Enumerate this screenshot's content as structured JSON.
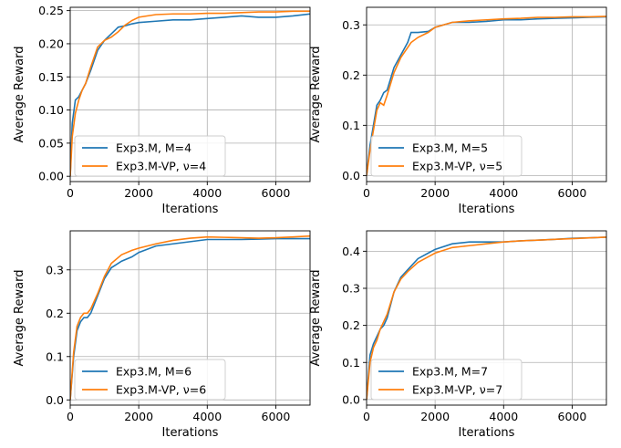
{
  "chart_data": [
    {
      "type": "line",
      "xlabel": "Iterations",
      "ylabel": "Average Reward",
      "xlim": [
        0,
        7000
      ],
      "ylim": [
        -0.008,
        0.255
      ],
      "xticks": [
        0,
        2000,
        4000,
        6000
      ],
      "yticks": [
        0.0,
        0.05,
        0.1,
        0.15,
        0.2,
        0.25
      ],
      "ytick_labels": [
        "0.00",
        "0.05",
        "0.10",
        "0.15",
        "0.20",
        "0.25"
      ],
      "grid": true,
      "legend_position": "lower-left",
      "series": [
        {
          "name": "Exp3.M, M=4",
          "color": "#1f77b4",
          "x": [
            0,
            60,
            150,
            250,
            350,
            450,
            600,
            800,
            1000,
            1200,
            1400,
            1600,
            1800,
            2000,
            2500,
            3000,
            3500,
            4000,
            4500,
            5000,
            5500,
            6000,
            6500,
            7000
          ],
          "y": [
            0.0,
            0.08,
            0.115,
            0.12,
            0.13,
            0.14,
            0.16,
            0.19,
            0.205,
            0.215,
            0.225,
            0.227,
            0.23,
            0.232,
            0.234,
            0.236,
            0.236,
            0.238,
            0.24,
            0.242,
            0.24,
            0.24,
            0.242,
            0.245
          ]
        },
        {
          "name": "Exp3.M-VP, ν=4",
          "color": "#ff7f0e",
          "x": [
            0,
            60,
            150,
            250,
            350,
            450,
            600,
            800,
            1000,
            1200,
            1400,
            1600,
            1800,
            2000,
            2500,
            3000,
            3500,
            4000,
            4500,
            5000,
            5500,
            6000,
            6500,
            7000
          ],
          "y": [
            0.0,
            0.06,
            0.095,
            0.115,
            0.13,
            0.14,
            0.165,
            0.195,
            0.205,
            0.21,
            0.218,
            0.228,
            0.235,
            0.24,
            0.244,
            0.245,
            0.245,
            0.246,
            0.246,
            0.247,
            0.248,
            0.248,
            0.249,
            0.249
          ]
        }
      ]
    },
    {
      "type": "line",
      "xlabel": "Iterations",
      "ylabel": "Average Reward",
      "xlim": [
        0,
        7000
      ],
      "ylim": [
        -0.012,
        0.335
      ],
      "xticks": [
        0,
        2000,
        4000,
        6000
      ],
      "yticks": [
        0.0,
        0.1,
        0.2,
        0.3
      ],
      "ytick_labels": [
        "0.0",
        "0.1",
        "0.2",
        "0.3"
      ],
      "grid": true,
      "legend_position": "lower-left",
      "series": [
        {
          "name": "Exp3.M, M=5",
          "color": "#1f77b4",
          "x": [
            0,
            100,
            200,
            300,
            400,
            500,
            600,
            800,
            1000,
            1200,
            1300,
            1500,
            1800,
            2000,
            2500,
            3000,
            3500,
            4000,
            4500,
            5000,
            5500,
            6000,
            6500,
            7000
          ],
          "y": [
            0.0,
            0.06,
            0.1,
            0.14,
            0.15,
            0.165,
            0.17,
            0.215,
            0.24,
            0.265,
            0.285,
            0.285,
            0.287,
            0.295,
            0.305,
            0.305,
            0.307,
            0.31,
            0.31,
            0.312,
            0.313,
            0.314,
            0.315,
            0.316
          ]
        },
        {
          "name": "Exp3.M-VP, ν=5",
          "color": "#ff7f0e",
          "x": [
            0,
            100,
            200,
            300,
            400,
            500,
            600,
            800,
            1000,
            1200,
            1300,
            1500,
            1800,
            2000,
            2500,
            3000,
            3500,
            4000,
            4500,
            5000,
            5500,
            6000,
            6500,
            7000
          ],
          "y": [
            0.0,
            0.05,
            0.09,
            0.13,
            0.145,
            0.14,
            0.16,
            0.205,
            0.235,
            0.255,
            0.265,
            0.275,
            0.285,
            0.295,
            0.305,
            0.308,
            0.31,
            0.312,
            0.313,
            0.315,
            0.315,
            0.316,
            0.316,
            0.317
          ]
        }
      ]
    },
    {
      "type": "line",
      "xlabel": "Iterations",
      "ylabel": "Average Reward",
      "xlim": [
        0,
        7000
      ],
      "ylim": [
        -0.012,
        0.39
      ],
      "xticks": [
        0,
        2000,
        4000,
        6000
      ],
      "yticks": [
        0.0,
        0.1,
        0.2,
        0.3
      ],
      "ytick_labels": [
        "0.0",
        "0.1",
        "0.2",
        "0.3"
      ],
      "grid": true,
      "legend_position": "lower-left",
      "series": [
        {
          "name": "Exp3.M, M=6",
          "color": "#1f77b4",
          "x": [
            0,
            100,
            200,
            300,
            400,
            500,
            600,
            800,
            1000,
            1200,
            1500,
            1800,
            2000,
            2500,
            3000,
            3500,
            4000,
            4500,
            5000,
            5500,
            6000,
            6500,
            7000
          ],
          "y": [
            0.0,
            0.1,
            0.16,
            0.18,
            0.19,
            0.19,
            0.2,
            0.24,
            0.28,
            0.305,
            0.32,
            0.33,
            0.34,
            0.355,
            0.36,
            0.365,
            0.37,
            0.37,
            0.37,
            0.371,
            0.372,
            0.372,
            0.372
          ]
        },
        {
          "name": "Exp3.M-VP, ν=6",
          "color": "#ff7f0e",
          "x": [
            0,
            100,
            200,
            300,
            400,
            500,
            600,
            800,
            1000,
            1200,
            1500,
            1800,
            2000,
            2500,
            3000,
            3500,
            4000,
            4500,
            5000,
            5500,
            6000,
            6500,
            7000
          ],
          "y": [
            0.0,
            0.11,
            0.17,
            0.19,
            0.2,
            0.2,
            0.21,
            0.245,
            0.285,
            0.315,
            0.335,
            0.345,
            0.35,
            0.36,
            0.368,
            0.373,
            0.376,
            0.375,
            0.374,
            0.373,
            0.374,
            0.376,
            0.378
          ]
        }
      ]
    },
    {
      "type": "line",
      "xlabel": "Iterations",
      "ylabel": "Average Reward",
      "xlim": [
        0,
        7000
      ],
      "ylim": [
        -0.015,
        0.455
      ],
      "xticks": [
        0,
        2000,
        4000,
        6000
      ],
      "yticks": [
        0.0,
        0.1,
        0.2,
        0.3,
        0.4
      ],
      "ytick_labels": [
        "0.0",
        "0.1",
        "0.2",
        "0.3",
        "0.4"
      ],
      "grid": true,
      "legend_position": "lower-left",
      "series": [
        {
          "name": "Exp3.M, M=7",
          "color": "#1f77b4",
          "x": [
            0,
            100,
            200,
            300,
            400,
            500,
            600,
            800,
            1000,
            1200,
            1500,
            1800,
            2000,
            2500,
            3000,
            3500,
            4000,
            4500,
            5000,
            5500,
            6000,
            6500,
            7000
          ],
          "y": [
            0.0,
            0.12,
            0.15,
            0.17,
            0.19,
            0.2,
            0.22,
            0.29,
            0.33,
            0.35,
            0.38,
            0.395,
            0.405,
            0.42,
            0.425,
            0.425,
            0.425,
            0.428,
            0.43,
            0.432,
            0.435,
            0.436,
            0.438
          ]
        },
        {
          "name": "Exp3.M-VP, ν=7",
          "color": "#ff7f0e",
          "x": [
            0,
            100,
            200,
            300,
            400,
            500,
            600,
            800,
            1000,
            1200,
            1500,
            1800,
            2000,
            2500,
            3000,
            3500,
            4000,
            4500,
            5000,
            5500,
            6000,
            6500,
            7000
          ],
          "y": [
            0.0,
            0.1,
            0.14,
            0.16,
            0.19,
            0.21,
            0.23,
            0.29,
            0.325,
            0.345,
            0.37,
            0.385,
            0.395,
            0.41,
            0.415,
            0.42,
            0.425,
            0.428,
            0.43,
            0.432,
            0.434,
            0.436,
            0.438
          ]
        }
      ]
    }
  ]
}
